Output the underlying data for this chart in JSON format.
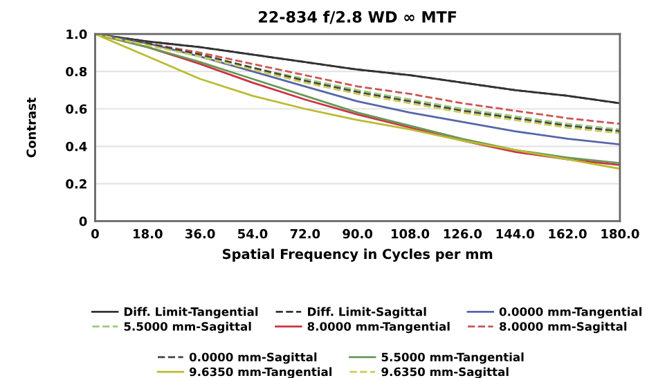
{
  "chart_data": {
    "type": "line",
    "title": "22-834 f/2.8 WD ∞ MTF",
    "xlabel": "Spatial Frequency in Cycles per mm",
    "ylabel": "Contrast",
    "x": [
      0,
      18,
      36,
      54,
      72,
      90,
      108,
      126,
      144,
      162,
      180
    ],
    "xlim": [
      0,
      180
    ],
    "ylim": [
      0,
      1.0
    ],
    "xticks": [
      0,
      {
        "value": 18,
        "label": "18.0"
      },
      {
        "value": 36,
        "label": "36.0"
      },
      {
        "value": 54,
        "label": "54.0"
      },
      {
        "value": 72,
        "label": "72.0"
      },
      {
        "value": 90,
        "label": "90.0"
      },
      {
        "value": 108,
        "label": "108.0"
      },
      {
        "value": 126,
        "label": "126.0"
      },
      {
        "value": 144,
        "label": "144.0"
      },
      {
        "value": 162,
        "label": "162.0"
      },
      {
        "value": 180,
        "label": "180.0"
      }
    ],
    "yticks": [
      0,
      0.2,
      0.4,
      0.6,
      0.8,
      {
        "value": 1.0,
        "label": "1.0"
      }
    ],
    "grid": "y",
    "legend": "bottom",
    "marker": "none",
    "series": [
      {
        "name": "Diff. Limit-Tangential",
        "color": "#333333",
        "line_style": "solid",
        "values": [
          1.0,
          0.96,
          0.93,
          0.89,
          0.85,
          0.81,
          0.78,
          0.74,
          0.7,
          0.67,
          0.63
        ]
      },
      {
        "name": "Diff. Limit-Sagittal",
        "color": "#333333",
        "line_style": "dashed",
        "values": [
          1.0,
          0.96,
          0.93,
          0.89,
          0.85,
          0.81,
          0.78,
          0.74,
          0.7,
          0.67,
          0.63
        ]
      },
      {
        "name": "0.0000 mm-Tangential",
        "color": "#5566aa",
        "line_style": "solid",
        "values": [
          1.0,
          0.95,
          0.88,
          0.8,
          0.72,
          0.64,
          0.58,
          0.53,
          0.48,
          0.44,
          0.41
        ]
      },
      {
        "name": "5.5000 mm-Sagittal",
        "color": "#99cc77",
        "line_style": "dashed",
        "values": [
          1.0,
          0.95,
          0.89,
          0.82,
          0.76,
          0.7,
          0.65,
          0.6,
          0.56,
          0.52,
          0.49
        ]
      },
      {
        "name": "8.0000 mm-Tangential",
        "color": "#cc3344",
        "line_style": "solid",
        "values": [
          1.0,
          0.93,
          0.84,
          0.74,
          0.65,
          0.57,
          0.5,
          0.43,
          0.37,
          0.33,
          0.3
        ]
      },
      {
        "name": "8.0000 mm-Sagittal",
        "color": "#cc5555",
        "line_style": "dashed",
        "values": [
          1.0,
          0.95,
          0.9,
          0.84,
          0.78,
          0.72,
          0.68,
          0.63,
          0.59,
          0.55,
          0.52
        ]
      },
      {
        "name": "0.0000 mm-Sagittal",
        "color": "#444444",
        "line_style": "dashed",
        "values": [
          1.0,
          0.95,
          0.89,
          0.82,
          0.75,
          0.69,
          0.64,
          0.59,
          0.55,
          0.51,
          0.48
        ]
      },
      {
        "name": "5.5000 mm-Tangential",
        "color": "#669955",
        "line_style": "solid",
        "values": [
          1.0,
          0.93,
          0.85,
          0.76,
          0.67,
          0.58,
          0.51,
          0.44,
          0.38,
          0.34,
          0.31
        ]
      },
      {
        "name": "9.6350 mm-Tangential",
        "color": "#bbbb33",
        "line_style": "solid",
        "values": [
          1.0,
          0.88,
          0.76,
          0.67,
          0.6,
          0.54,
          0.49,
          0.43,
          0.38,
          0.33,
          0.28
        ]
      },
      {
        "name": "9.6350 mm-Sagittal",
        "color": "#cccc55",
        "line_style": "dashed",
        "values": [
          1.0,
          0.94,
          0.88,
          0.81,
          0.74,
          0.68,
          0.63,
          0.58,
          0.54,
          0.5,
          0.47
        ]
      }
    ]
  }
}
